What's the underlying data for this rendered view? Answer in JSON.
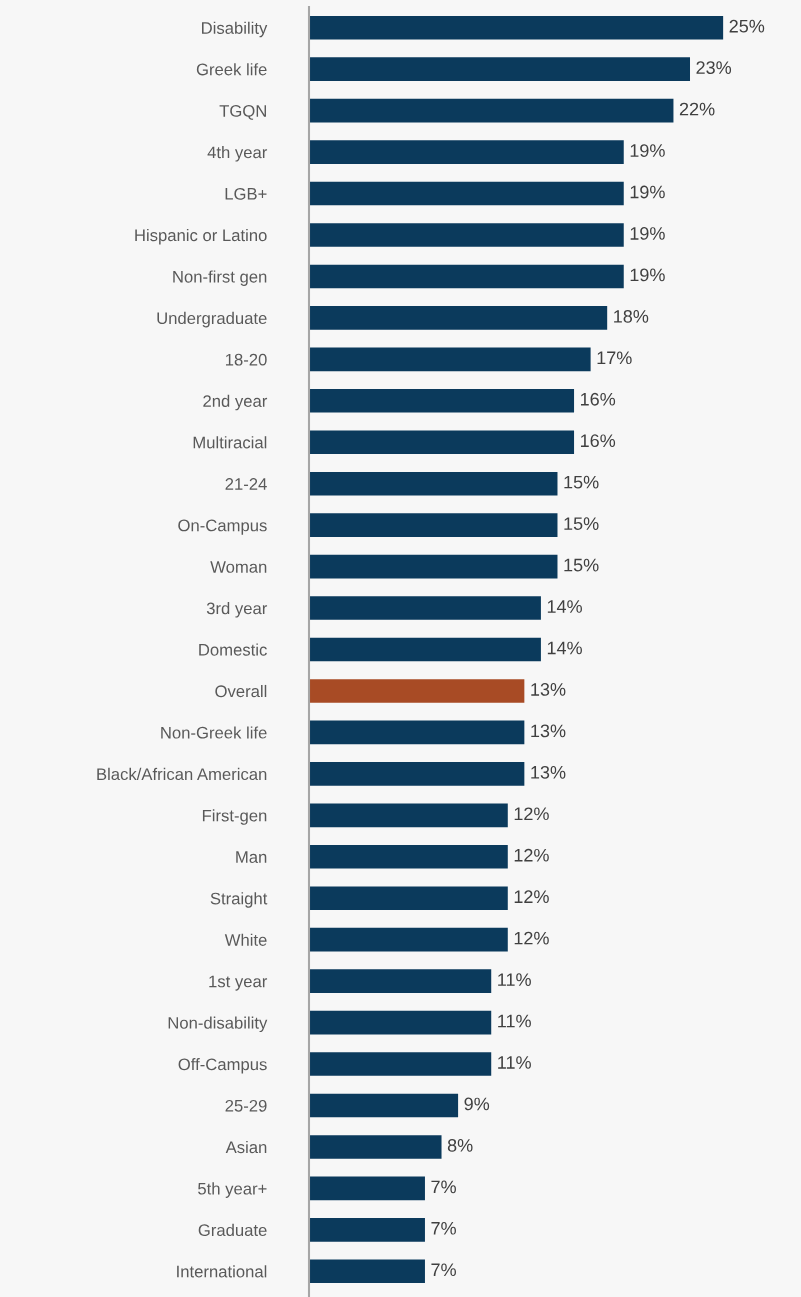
{
  "chart_data": {
    "type": "bar",
    "orientation": "horizontal",
    "categories": [
      "Disability",
      "Greek life",
      "TGQN",
      "4th year",
      "LGB+",
      "Hispanic or Latino",
      "Non-first gen",
      "Undergraduate",
      "18-20",
      "2nd year",
      "Multiracial",
      "21-24",
      "On-Campus",
      "Woman",
      "3rd year",
      "Domestic",
      "Overall",
      "Non-Greek life",
      "Black/African American",
      "First-gen",
      "Man",
      "Straight",
      "White",
      "1st year",
      "Non-disability",
      "Off-Campus",
      "25-29",
      "Asian",
      "5th year+",
      "Graduate",
      "International"
    ],
    "values": [
      25,
      23,
      22,
      19,
      19,
      19,
      19,
      18,
      17,
      16,
      16,
      15,
      15,
      15,
      14,
      14,
      13,
      13,
      13,
      12,
      12,
      12,
      12,
      11,
      11,
      11,
      9,
      8,
      7,
      7,
      7
    ],
    "value_labels": [
      "25%",
      "23%",
      "22%",
      "19%",
      "19%",
      "19%",
      "19%",
      "18%",
      "17%",
      "16%",
      "16%",
      "15%",
      "15%",
      "15%",
      "14%",
      "14%",
      "13%",
      "13%",
      "13%",
      "12%",
      "12%",
      "12%",
      "12%",
      "11%",
      "11%",
      "11%",
      "9%",
      "8%",
      "7%",
      "7%",
      "7%"
    ],
    "colors": [
      "#0b3a5c",
      "#0b3a5c",
      "#0b3a5c",
      "#0b3a5c",
      "#0b3a5c",
      "#0b3a5c",
      "#0b3a5c",
      "#0b3a5c",
      "#0b3a5c",
      "#0b3a5c",
      "#0b3a5c",
      "#0b3a5c",
      "#0b3a5c",
      "#0b3a5c",
      "#0b3a5c",
      "#0b3a5c",
      "#a84b25",
      "#0b3a5c",
      "#0b3a5c",
      "#0b3a5c",
      "#0b3a5c",
      "#0b3a5c",
      "#0b3a5c",
      "#0b3a5c",
      "#0b3a5c",
      "#0b3a5c",
      "#0b3a5c",
      "#0b3a5c",
      "#0b3a5c",
      "#0b3a5c",
      "#0b3a5c"
    ],
    "xlim": [
      0,
      29.7
    ],
    "tick_labels": "y",
    "grid": false,
    "legend": false
  }
}
